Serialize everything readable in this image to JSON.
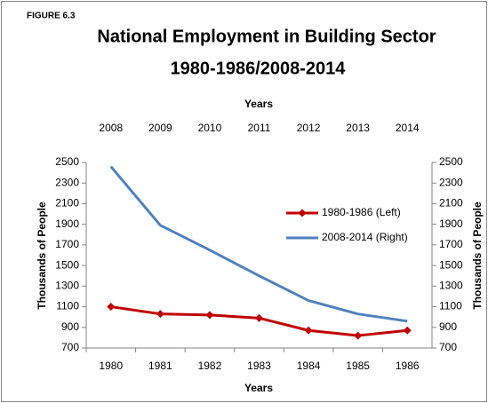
{
  "chart_data": {
    "type": "line",
    "figure_label": "FIGURE 6.3",
    "title": "National Employment in Building Sector",
    "subtitle": "1980-1986/2008-2014",
    "x_label": "Years",
    "x2_label": "Years",
    "y_label": "Thousands of People",
    "y2_label": "Thousands of People",
    "categories": [
      "1980",
      "1981",
      "1982",
      "1983",
      "1984",
      "1985",
      "1986"
    ],
    "x2_categories": [
      "2008",
      "2009",
      "2010",
      "2011",
      "2012",
      "2013",
      "2014"
    ],
    "ylim": [
      700,
      2500
    ],
    "yticks": [
      700,
      900,
      1100,
      1300,
      1500,
      1700,
      1900,
      2100,
      2300,
      2500
    ],
    "y2lim": [
      700,
      2500
    ],
    "y2ticks": [
      700,
      900,
      1100,
      1300,
      1500,
      1700,
      1900,
      2100,
      2300,
      2500
    ],
    "legend": "right",
    "series": [
      {
        "name": "1980-1986 (Left)",
        "color": "#c00000",
        "marker": "diamond",
        "values": [
          1100,
          1030,
          1020,
          990,
          870,
          820,
          870
        ]
      },
      {
        "name": "2008-2014 (Right)",
        "color": "#4f81bd",
        "axis": "y2",
        "values": [
          2460,
          1890,
          1650,
          1400,
          1160,
          1030,
          960
        ]
      }
    ]
  }
}
